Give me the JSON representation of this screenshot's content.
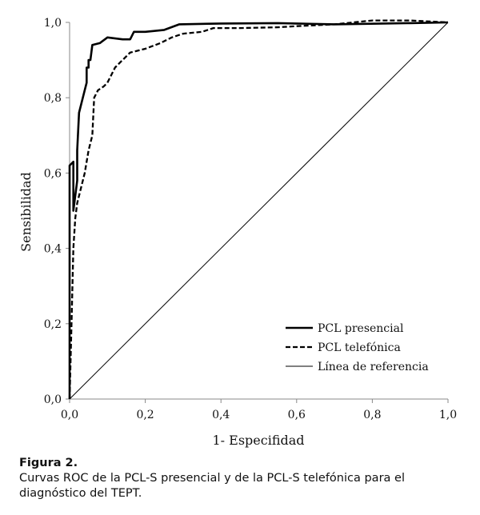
{
  "chart_data": {
    "type": "line",
    "xlabel": "1- Especifidad",
    "ylabel": "Sensibilidad",
    "xlim": [
      0,
      1
    ],
    "ylim": [
      0,
      1
    ],
    "xticks": [
      "0,0",
      "0,2",
      "0,4",
      "0,6",
      "0,8",
      "1,0"
    ],
    "yticks": [
      "0,0",
      "0,2",
      "0,4",
      "0,6",
      "0,8",
      "1,0"
    ],
    "grid": false,
    "legend_position": "bottom-right",
    "series": [
      {
        "name": "PCL presencial",
        "style": "solid-thick",
        "points": [
          [
            0,
            0
          ],
          [
            0,
            0.62
          ],
          [
            0.01,
            0.63
          ],
          [
            0.01,
            0.55
          ],
          [
            0.01,
            0.5
          ],
          [
            0.02,
            0.58
          ],
          [
            0.02,
            0.66
          ],
          [
            0.025,
            0.76
          ],
          [
            0.04,
            0.82
          ],
          [
            0.045,
            0.84
          ],
          [
            0.045,
            0.88
          ],
          [
            0.05,
            0.88
          ],
          [
            0.05,
            0.9
          ],
          [
            0.055,
            0.9
          ],
          [
            0.06,
            0.94
          ],
          [
            0.08,
            0.945
          ],
          [
            0.1,
            0.96
          ],
          [
            0.14,
            0.955
          ],
          [
            0.16,
            0.955
          ],
          [
            0.17,
            0.975
          ],
          [
            0.2,
            0.975
          ],
          [
            0.25,
            0.98
          ],
          [
            0.29,
            0.995
          ],
          [
            0.4,
            0.997
          ],
          [
            0.55,
            0.998
          ],
          [
            0.6,
            0.997
          ],
          [
            0.7,
            0.995
          ],
          [
            0.9,
            0.998
          ],
          [
            1,
            1
          ]
        ]
      },
      {
        "name": "PCL telefónica",
        "style": "dashed-thick",
        "points": [
          [
            0,
            0
          ],
          [
            0.005,
            0.2
          ],
          [
            0.01,
            0.4
          ],
          [
            0.015,
            0.48
          ],
          [
            0.02,
            0.52
          ],
          [
            0.03,
            0.56
          ],
          [
            0.04,
            0.6
          ],
          [
            0.05,
            0.66
          ],
          [
            0.06,
            0.7
          ],
          [
            0.065,
            0.8
          ],
          [
            0.075,
            0.82
          ],
          [
            0.09,
            0.83
          ],
          [
            0.1,
            0.84
          ],
          [
            0.12,
            0.88
          ],
          [
            0.14,
            0.9
          ],
          [
            0.16,
            0.92
          ],
          [
            0.2,
            0.93
          ],
          [
            0.24,
            0.945
          ],
          [
            0.27,
            0.96
          ],
          [
            0.3,
            0.97
          ],
          [
            0.35,
            0.975
          ],
          [
            0.38,
            0.985
          ],
          [
            0.45,
            0.985
          ],
          [
            0.55,
            0.987
          ],
          [
            0.6,
            0.99
          ],
          [
            0.7,
            0.995
          ],
          [
            0.8,
            1.005
          ],
          [
            0.9,
            1.005
          ],
          [
            1,
            1
          ]
        ]
      },
      {
        "name": "Línea de referencia",
        "style": "solid-thin",
        "points": [
          [
            0,
            0
          ],
          [
            1,
            1
          ]
        ]
      }
    ]
  },
  "caption": {
    "label": "Figura 2.",
    "text": "Curvas ROC de la PCL-S presencial y de la PCL-S telefónica para el diagnóstico del TEPT."
  }
}
